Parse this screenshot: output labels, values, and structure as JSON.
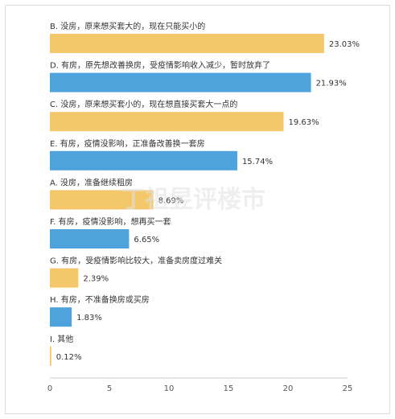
{
  "chart_data": {
    "type": "bar",
    "orientation": "horizontal",
    "categories": [
      "B. 没房，原来想买套大的，现在只能买小的",
      "D. 有房，原先想改善换房，受疫情影响收入减少，暂时放弃了",
      "C. 没房，原来想买套小的，现在想直接买套大一点的",
      "E. 有房，疫情没影响，正准备改善换一套房",
      "A. 没房，准备继续租房",
      "F. 有房，疫情没影响，想再买一套",
      "G. 有房，受疫情影响比较大，准备卖房度过难关",
      "H. 有房，不准备换房或买房",
      "I. 其他"
    ],
    "values": [
      23.03,
      21.93,
      19.63,
      15.74,
      8.69,
      6.65,
      2.39,
      1.83,
      0.12
    ],
    "value_labels": [
      "23.03%",
      "21.93%",
      "19.63%",
      "15.74%",
      "8.69%",
      "6.65%",
      "2.39%",
      "1.83%",
      "0.12%"
    ],
    "bar_colors": [
      "#F4C76A",
      "#4FA3DC",
      "#F4C76A",
      "#4FA3DC",
      "#F4C76A",
      "#4FA3DC",
      "#F4C76A",
      "#4FA3DC",
      "#F4C76A"
    ],
    "xlim": [
      0,
      25
    ],
    "xticks": [
      "0",
      "5",
      "10",
      "15",
      "20",
      "25"
    ],
    "grid": false,
    "title": "",
    "xlabel": "",
    "ylabel": ""
  },
  "watermark": "丁祖昱评楼市"
}
